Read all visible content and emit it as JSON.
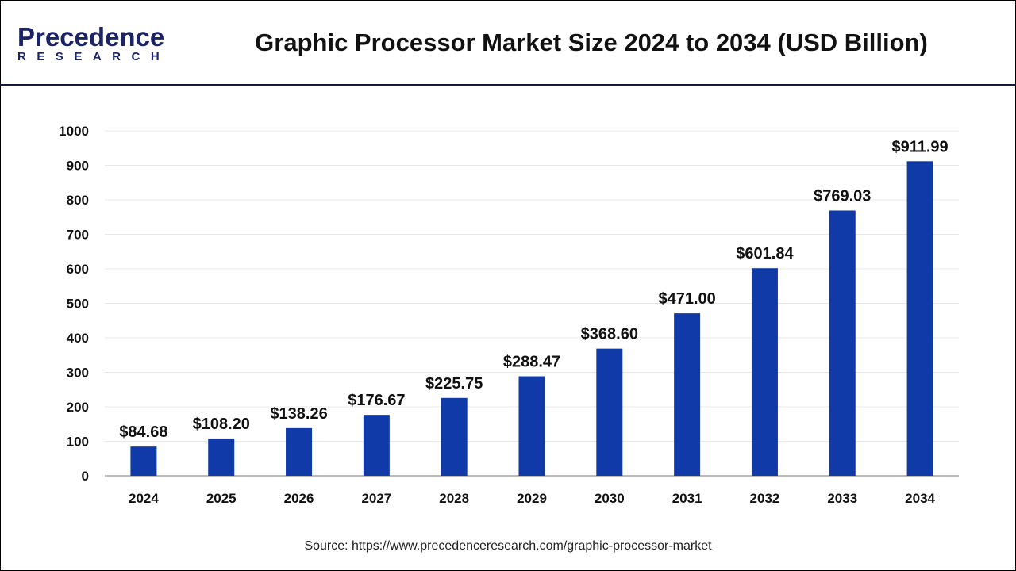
{
  "header": {
    "title": "Graphic Processor Market Size 2024 to 2034 (USD Billion)",
    "logo_text": "Precedence",
    "logo_sub": "RESEARCH"
  },
  "source": "Source: https://www.precedenceresearch.com/graphic-processor-market",
  "colors": {
    "bar": "#0f3aa8",
    "grid": "#e8e8e8",
    "axis": "#bbbbbb"
  },
  "chart_data": {
    "type": "bar",
    "title": "Graphic Processor Market Size 2024 to 2034 (USD Billion)",
    "categories": [
      "2024",
      "2025",
      "2026",
      "2027",
      "2028",
      "2029",
      "2030",
      "2031",
      "2032",
      "2033",
      "2034"
    ],
    "values": [
      84.68,
      108.2,
      138.26,
      176.67,
      225.75,
      288.47,
      368.6,
      471.0,
      601.84,
      769.03,
      911.99
    ],
    "data_labels": [
      "$84.68",
      "$108.20",
      "$138.26",
      "$176.67",
      "$225.75",
      "$288.47",
      "$368.60",
      "$471.00",
      "$601.84",
      "$769.03",
      "$911.99"
    ],
    "yticks": [
      0,
      100,
      200,
      300,
      400,
      500,
      600,
      700,
      800,
      900,
      1000
    ],
    "ylim": [
      0,
      1000
    ],
    "grid": true,
    "xlabel": "",
    "ylabel": ""
  }
}
